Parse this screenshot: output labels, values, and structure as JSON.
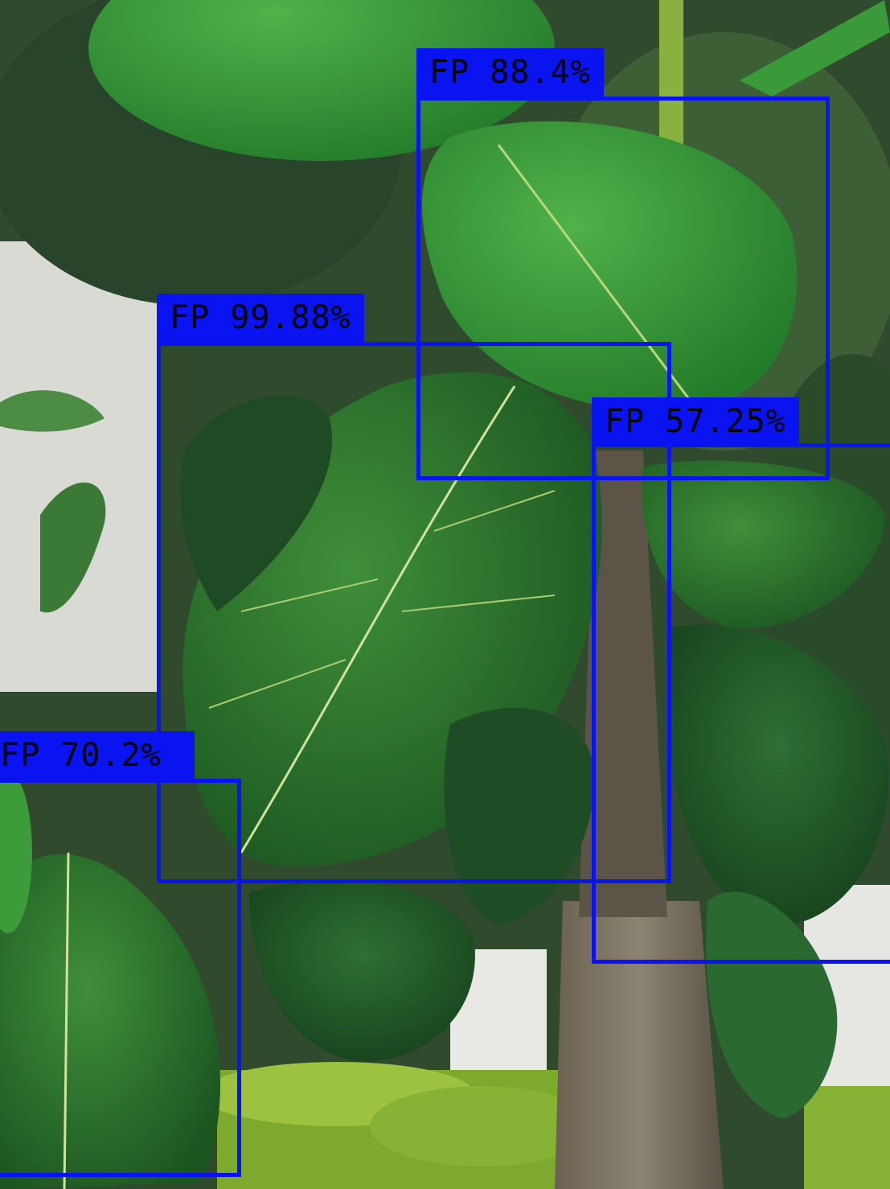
{
  "style": {
    "box_color": "#0a14f0",
    "label_text_color": "#000000"
  },
  "detections": [
    {
      "label": "FP 88.4%"
    },
    {
      "label": "FP 99.88%"
    },
    {
      "label": "FP 57.25%"
    },
    {
      "label": "FP 70.2%"
    }
  ]
}
